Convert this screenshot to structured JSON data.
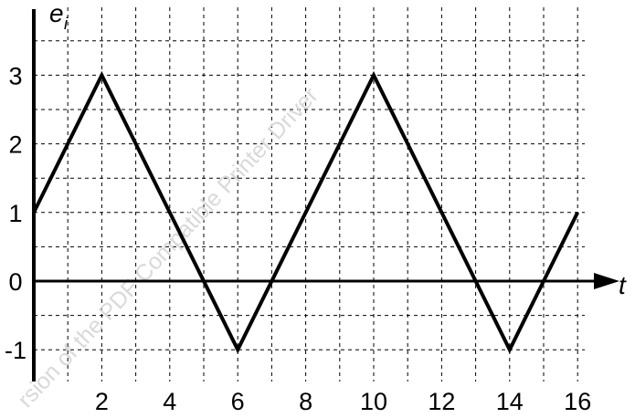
{
  "chart_data": {
    "type": "line",
    "xlabel": "t",
    "ylabel": "e",
    "ylabel_subscript": "i",
    "xlim": [
      0,
      17
    ],
    "ylim": [
      -1.5,
      3.8
    ],
    "x_ticks": [
      "2",
      "4",
      "6",
      "8",
      "10",
      "12",
      "14",
      "16"
    ],
    "y_ticks": [
      "3",
      "2",
      "1",
      "0",
      "-1"
    ],
    "grid": true,
    "series": [
      {
        "x": [
          0,
          2,
          6,
          10,
          14,
          16
        ],
        "y": [
          1,
          3,
          -1,
          3,
          -1,
          1
        ]
      }
    ]
  },
  "watermark": {
    "text": "rsion of the PDF Compatible Printer Driver"
  },
  "colors": {
    "line": "#000000",
    "grid": "#000000",
    "watermark": "#d9d9d9"
  }
}
